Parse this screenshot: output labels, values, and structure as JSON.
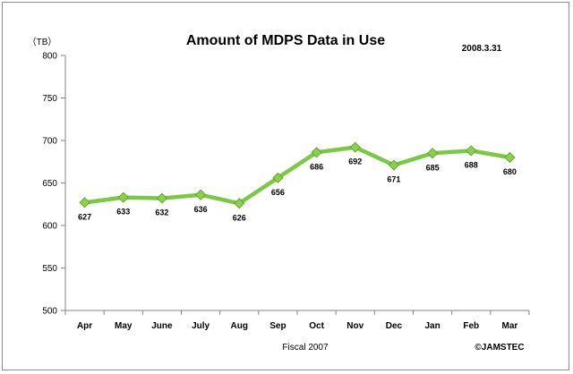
{
  "chart_data": {
    "type": "line",
    "title": "Amount of MDPS Data in Use",
    "date_label": "2008.3.31",
    "ylabel": "（TB）",
    "xlabel": "Fiscal 2007",
    "credit": "©JAMSTEC",
    "categories": [
      "Apr",
      "May",
      "June",
      "July",
      "Aug",
      "Sep",
      "Oct",
      "Nov",
      "Dec",
      "Jan",
      "Feb",
      "Mar"
    ],
    "series": [
      {
        "values": [
          627,
          633,
          632,
          636,
          626,
          656,
          686,
          692,
          671,
          685,
          688,
          680
        ]
      }
    ],
    "ylim": [
      500,
      800
    ],
    "yticks": [
      500,
      550,
      600,
      650,
      700,
      750,
      800
    ],
    "grid": false,
    "legend": "none",
    "colors": {
      "line": "#7ac943",
      "marker": "#8ad14a",
      "marker_edge": "#5a9a2a",
      "axis": "#868686",
      "text": "#000000"
    }
  }
}
